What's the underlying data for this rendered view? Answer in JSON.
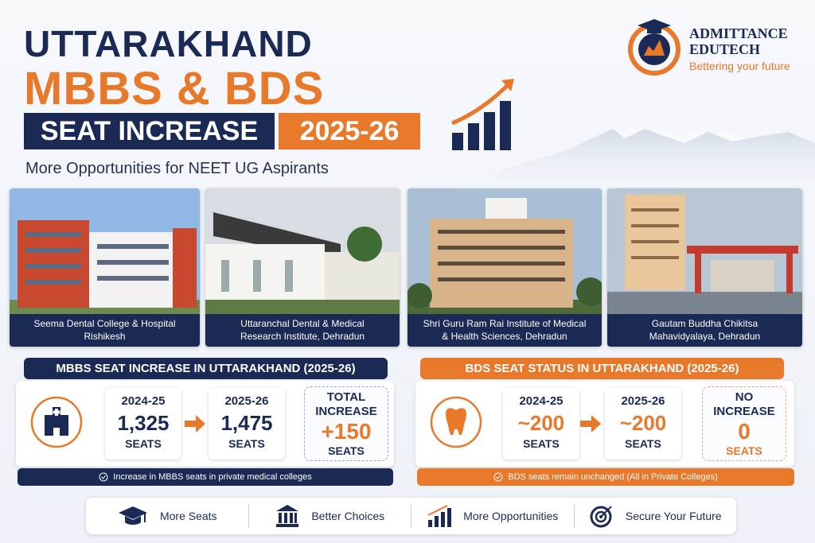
{
  "header": {
    "title_line1": "UTTARAKHAND",
    "title_line2": "MBBS & BDS",
    "badge_left": "SEAT INCREASE",
    "badge_right": "2025-26",
    "subtitle": "More Opportunities for NEET UG Aspirants"
  },
  "brand": {
    "name_line1": "ADMITTANCE",
    "name_line2": "EDUTECH",
    "tagline": "Bettering your future"
  },
  "colleges": [
    {
      "name_line1": "Seema Dental College & Hospital",
      "name_line2": "Rishikesh"
    },
    {
      "name_line1": "Uttaranchal Dental & Medical",
      "name_line2": "Research Institute, Dehradun"
    },
    {
      "name_line1": "Shri Guru Ram Rai Institute of Medical",
      "name_line2": "& Health Sciences, Dehradun"
    },
    {
      "name_line1": "Gautam Buddha Chikitsa",
      "name_line2": "Mahavidyalaya, Dehradun"
    }
  ],
  "mbbs": {
    "heading": "MBBS SEAT INCREASE IN UTTARAKHAND (2025-26)",
    "before": {
      "year": "2024-25",
      "count": "1,325",
      "unit": "SEATS"
    },
    "after": {
      "year": "2025-26",
      "count": "1,475",
      "unit": "SEATS"
    },
    "change": {
      "label_line1": "TOTAL",
      "label_line2": "INCREASE",
      "count": "+150",
      "unit": "SEATS"
    },
    "note": "Increase in MBBS seats in private medical colleges"
  },
  "bds": {
    "heading": "BDS SEAT STATUS IN UTTARAKHAND (2025-26)",
    "before": {
      "year": "2024-25",
      "count": "~200",
      "unit": "SEATS"
    },
    "after": {
      "year": "2025-26",
      "count": "~200",
      "unit": "SEATS"
    },
    "change": {
      "label_line1": "NO",
      "label_line2": "INCREASE",
      "count": "0",
      "unit": "SEATS"
    },
    "note": "BDS seats remain unchanged (All in Private Colleges)"
  },
  "features": [
    "More Seats",
    "Better Choices",
    "More Opportunities",
    "Secure Your Future"
  ]
}
